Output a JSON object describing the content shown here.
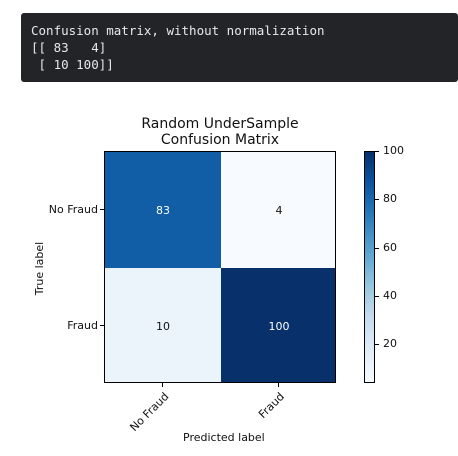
{
  "console": {
    "lines": [
      "Confusion matrix, without normalization",
      "[[ 83   4]",
      " [ 10 100]]"
    ]
  },
  "chart_data": {
    "type": "heatmap",
    "title_line1": "Random UnderSample",
    "title_line2": "Confusion Matrix",
    "xlabel": "Predicted label",
    "ylabel": "True label",
    "x_categories": [
      "No Fraud",
      "Fraud"
    ],
    "y_categories": [
      "No Fraud",
      "Fraud"
    ],
    "values": [
      [
        83,
        4
      ],
      [
        10,
        100
      ]
    ],
    "colormap": "Blues",
    "colorbar": {
      "min": 4,
      "max": 100,
      "ticks": [
        20,
        40,
        60,
        80,
        100
      ]
    }
  }
}
